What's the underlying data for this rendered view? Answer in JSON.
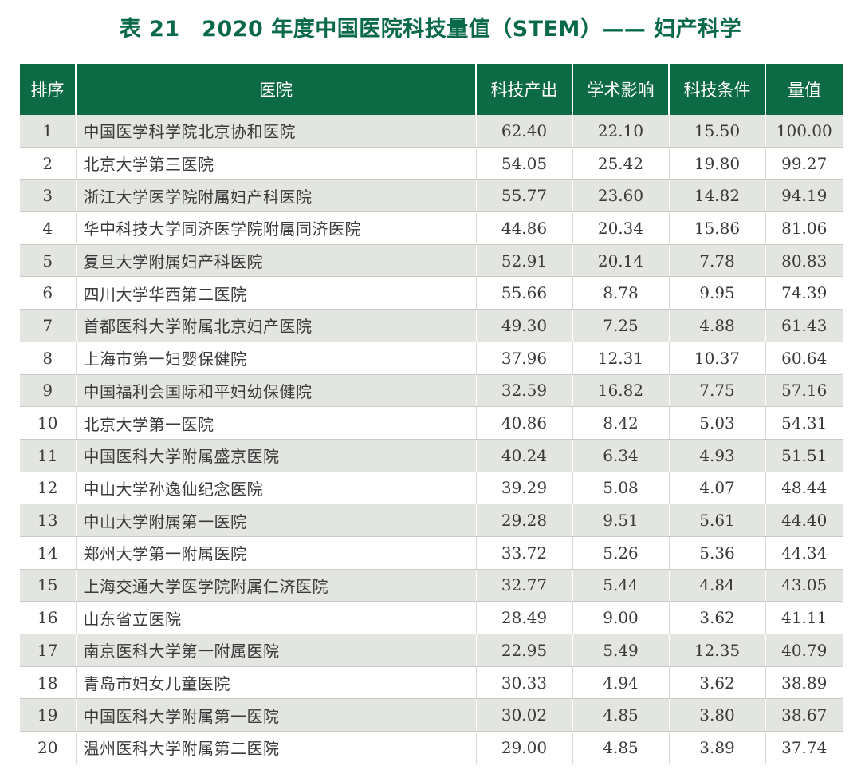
{
  "title": "表 21　2020 年度中国医院科技量值（STEM）—— 妇产科学",
  "table": {
    "headers": [
      "排序",
      "医院",
      "科技产出",
      "学术影响",
      "科技条件",
      "量值"
    ],
    "rows": [
      [
        "1",
        "中国医学科学院北京协和医院",
        "62.40",
        "22.10",
        "15.50",
        "100.00"
      ],
      [
        "2",
        "北京大学第三医院",
        "54.05",
        "25.42",
        "19.80",
        "99.27"
      ],
      [
        "3",
        "浙江大学医学院附属妇产科医院",
        "55.77",
        "23.60",
        "14.82",
        "94.19"
      ],
      [
        "4",
        "华中科技大学同济医学院附属同济医院",
        "44.86",
        "20.34",
        "15.86",
        "81.06"
      ],
      [
        "5",
        "复旦大学附属妇产科医院",
        "52.91",
        "20.14",
        "7.78",
        "80.83"
      ],
      [
        "6",
        "四川大学华西第二医院",
        "55.66",
        "8.78",
        "9.95",
        "74.39"
      ],
      [
        "7",
        "首都医科大学附属北京妇产医院",
        "49.30",
        "7.25",
        "4.88",
        "61.43"
      ],
      [
        "8",
        "上海市第一妇婴保健院",
        "37.96",
        "12.31",
        "10.37",
        "60.64"
      ],
      [
        "9",
        "中国福利会国际和平妇幼保健院",
        "32.59",
        "16.82",
        "7.75",
        "57.16"
      ],
      [
        "10",
        "北京大学第一医院",
        "40.86",
        "8.42",
        "5.03",
        "54.31"
      ],
      [
        "11",
        "中国医科大学附属盛京医院",
        "40.24",
        "6.34",
        "4.93",
        "51.51"
      ],
      [
        "12",
        "中山大学孙逸仙纪念医院",
        "39.29",
        "5.08",
        "4.07",
        "48.44"
      ],
      [
        "13",
        "中山大学附属第一医院",
        "29.28",
        "9.51",
        "5.61",
        "44.40"
      ],
      [
        "14",
        "郑州大学第一附属医院",
        "33.72",
        "5.26",
        "5.36",
        "44.34"
      ],
      [
        "15",
        "上海交通大学医学院附属仁济医院",
        "32.77",
        "5.44",
        "4.84",
        "43.05"
      ],
      [
        "16",
        "山东省立医院",
        "28.49",
        "9.00",
        "3.62",
        "41.11"
      ],
      [
        "17",
        "南京医科大学第一附属医院",
        "22.95",
        "5.49",
        "12.35",
        "40.79"
      ],
      [
        "18",
        "青岛市妇女儿童医院",
        "30.33",
        "4.94",
        "3.62",
        "38.89"
      ],
      [
        "19",
        "中国医科大学附属第一医院",
        "30.02",
        "4.85",
        "3.80",
        "38.67"
      ],
      [
        "20",
        "温州医科大学附属第二医院",
        "29.00",
        "4.85",
        "3.89",
        "37.74"
      ]
    ]
  }
}
